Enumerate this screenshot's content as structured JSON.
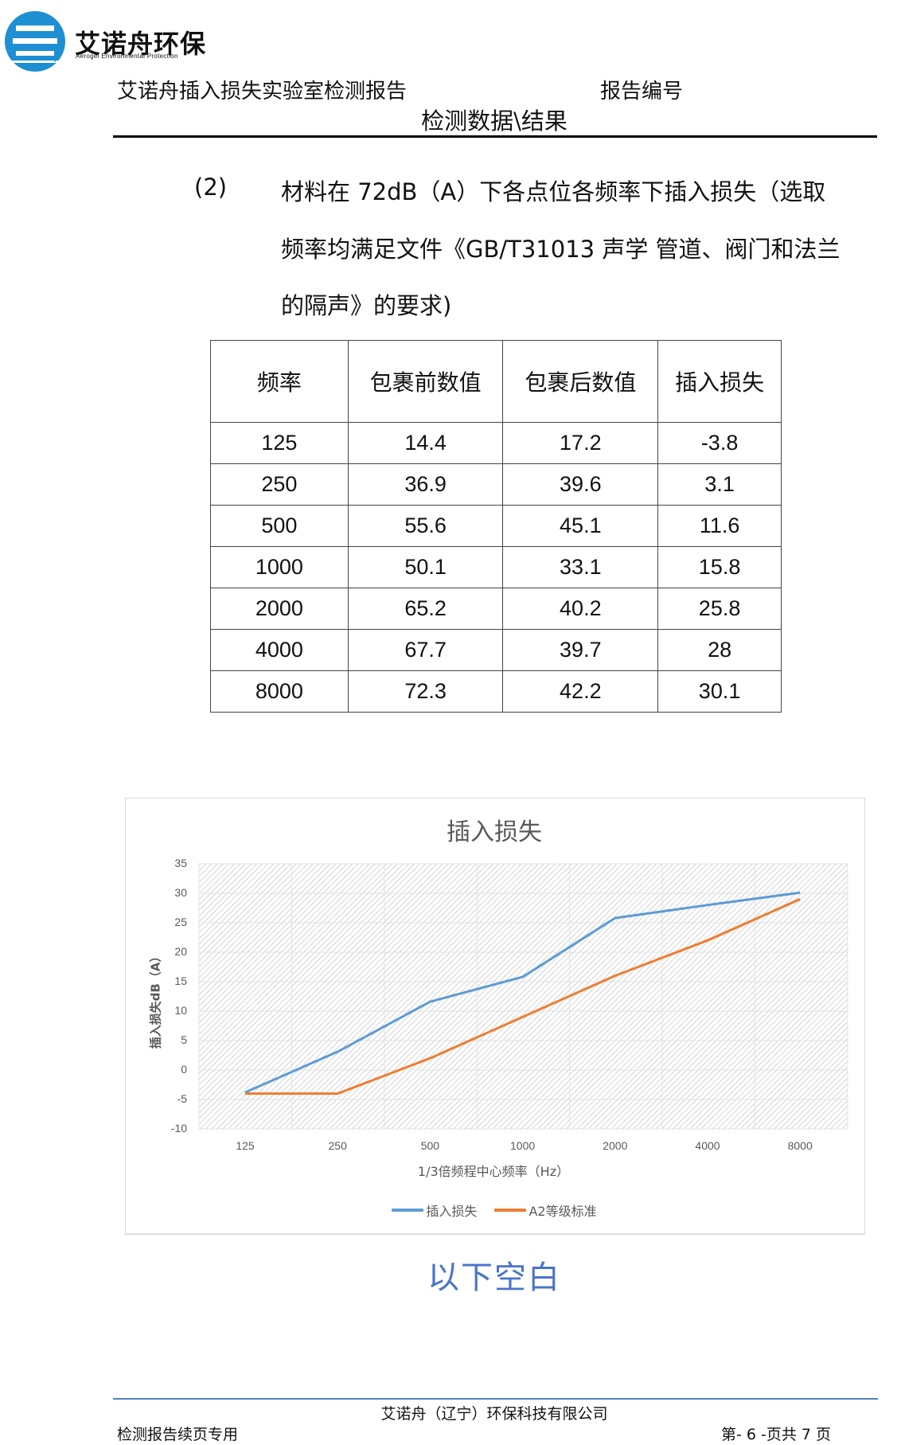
{
  "logo": {
    "name": "艾诺舟环保",
    "subtitle": "Aerogel Environmental Protection",
    "color": "#1f8fd4"
  },
  "header": {
    "report_title": "艾诺舟插入损失实验室检测报告",
    "report_number_label": "报告编号",
    "section_title": "检测数据\\结果"
  },
  "paragraph": {
    "number": "(2)",
    "lines": [
      "材料在 72dB（A）下各点位各频率下插入损失（选取",
      "频率均满足文件《GB/T31013 声学 管道、阀门和法兰",
      "的隔声》的要求)"
    ]
  },
  "table": {
    "headers": [
      "频率",
      "包裹前数值",
      "包裹后数值",
      "插入损失"
    ],
    "rows": [
      [
        "125",
        "14.4",
        "17.2",
        "-3.8"
      ],
      [
        "250",
        "36.9",
        "39.6",
        "3.1"
      ],
      [
        "500",
        "55.6",
        "45.1",
        "11.6"
      ],
      [
        "1000",
        "50.1",
        "33.1",
        "15.8"
      ],
      [
        "2000",
        "65.2",
        "40.2",
        "25.8"
      ],
      [
        "4000",
        "67.7",
        "39.7",
        "28"
      ],
      [
        "8000",
        "72.3",
        "42.2",
        "30.1"
      ]
    ]
  },
  "chart_data": {
    "type": "line",
    "title": "插入损失",
    "xlabel": "1/3倍频程中心频率（Hz）",
    "ylabel": "插入损失dB（A）",
    "categories": [
      "125",
      "250",
      "500",
      "1000",
      "2000",
      "4000",
      "8000"
    ],
    "series": [
      {
        "name": "插入损失",
        "color": "#5b9bd5",
        "values": [
          -3.8,
          3.1,
          11.6,
          15.8,
          25.8,
          28,
          30.1
        ]
      },
      {
        "name": "A2等级标准",
        "color": "#ed7d31",
        "values": [
          -4,
          -4,
          2,
          9,
          16,
          22,
          29
        ]
      }
    ],
    "yticks": [
      35,
      30,
      25,
      20,
      15,
      10,
      5,
      0,
      -5,
      -10
    ],
    "ylim": [
      -10,
      35
    ],
    "grid": true,
    "legend_position": "bottom"
  },
  "blank_note": "以下空白",
  "footer": {
    "company": "艾诺舟（辽宁）环保科技有限公司",
    "left_text": "检测报告续页专用",
    "page_info": "第- 6 -页共 7 页",
    "line_color": "#4f81bd"
  }
}
